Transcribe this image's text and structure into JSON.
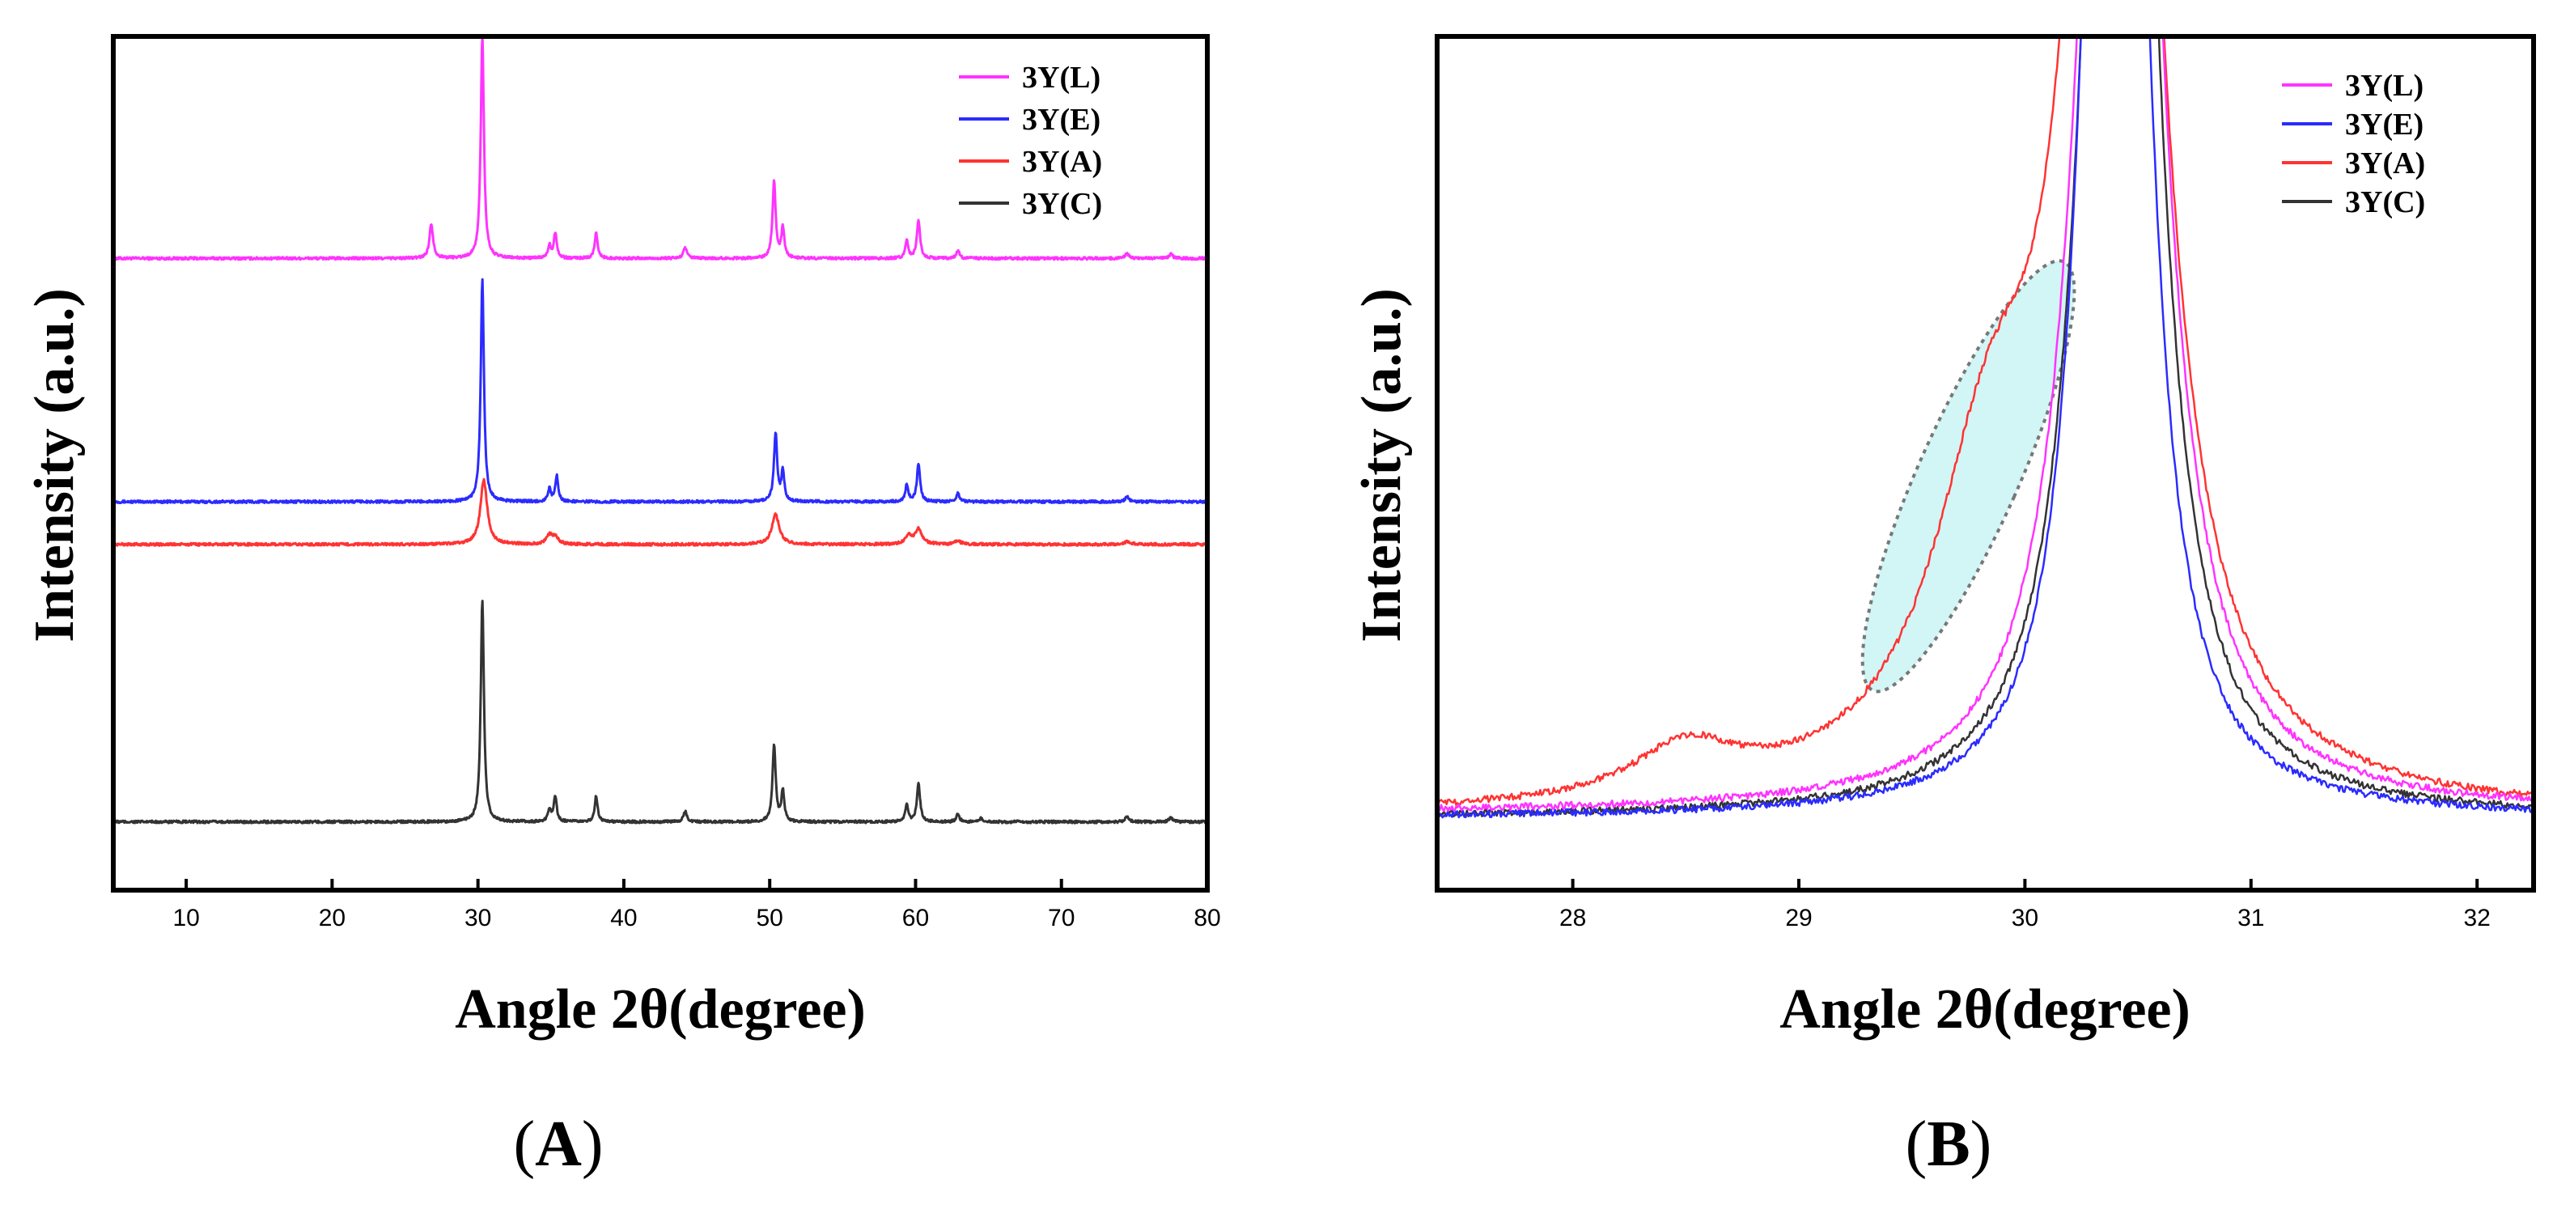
{
  "panel_labels": {
    "a": "A",
    "b": "B"
  },
  "chart_data": [
    {
      "type": "line",
      "panel": "A",
      "title": "",
      "xlabel": "Angle 2θ(degree)",
      "ylabel": "Intensity (a.u.)",
      "xlim": [
        5,
        80
      ],
      "xticks": [
        10,
        20,
        30,
        40,
        50,
        60,
        70,
        80
      ],
      "xtick_labels": [
        "10",
        "20",
        "30",
        "40",
        "50",
        "60",
        "70",
        "80"
      ],
      "ylim": [
        0,
        1
      ],
      "yticks_shown": false,
      "legend_position": "top-right",
      "series": [
        {
          "name": "3Y(L)",
          "color": "#ff33ff",
          "baseline": 0.74,
          "peaks": [
            [
              26.8,
              0.04,
              0.15
            ],
            [
              30.3,
              0.26,
              0.13
            ],
            [
              34.9,
              0.015,
              0.12
            ],
            [
              35.3,
              0.03,
              0.12
            ],
            [
              38.1,
              0.03,
              0.12
            ],
            [
              44.2,
              0.012,
              0.15
            ],
            [
              50.3,
              0.09,
              0.13
            ],
            [
              50.9,
              0.035,
              0.12
            ],
            [
              59.4,
              0.02,
              0.12
            ],
            [
              60.2,
              0.045,
              0.13
            ],
            [
              62.9,
              0.01,
              0.12
            ],
            [
              74.5,
              0.006,
              0.15
            ],
            [
              77.5,
              0.005,
              0.15
            ]
          ]
        },
        {
          "name": "3Y(E)",
          "color": "#2b2bff",
          "baseline": 0.455,
          "peaks": [
            [
              30.3,
              0.26,
              0.13
            ],
            [
              34.9,
              0.015,
              0.12
            ],
            [
              35.4,
              0.03,
              0.12
            ],
            [
              50.4,
              0.08,
              0.13
            ],
            [
              50.9,
              0.035,
              0.12
            ],
            [
              59.4,
              0.02,
              0.12
            ],
            [
              60.2,
              0.045,
              0.13
            ],
            [
              62.9,
              0.01,
              0.12
            ],
            [
              74.5,
              0.006,
              0.15
            ]
          ]
        },
        {
          "name": "3Y(A)",
          "color": "#ff3333",
          "baseline": 0.405,
          "peaks": [
            [
              30.4,
              0.075,
              0.28
            ],
            [
              34.9,
              0.01,
              0.25
            ],
            [
              35.3,
              0.008,
              0.25
            ],
            [
              50.4,
              0.035,
              0.3
            ],
            [
              59.5,
              0.01,
              0.25
            ],
            [
              60.2,
              0.018,
              0.28
            ],
            [
              62.9,
              0.004,
              0.25
            ],
            [
              74.5,
              0.003,
              0.3
            ]
          ]
        },
        {
          "name": "3Y(C)",
          "color": "#333333",
          "baseline": 0.08,
          "peaks": [
            [
              30.3,
              0.26,
              0.13
            ],
            [
              34.9,
              0.015,
              0.12
            ],
            [
              35.3,
              0.03,
              0.12
            ],
            [
              38.1,
              0.03,
              0.12
            ],
            [
              44.2,
              0.012,
              0.15
            ],
            [
              50.3,
              0.09,
              0.13
            ],
            [
              50.9,
              0.035,
              0.12
            ],
            [
              59.4,
              0.02,
              0.12
            ],
            [
              60.2,
              0.045,
              0.13
            ],
            [
              62.9,
              0.01,
              0.12
            ],
            [
              64.5,
              0.004,
              0.15
            ],
            [
              74.5,
              0.006,
              0.15
            ],
            [
              77.5,
              0.005,
              0.15
            ]
          ]
        }
      ]
    },
    {
      "type": "line",
      "panel": "B",
      "title": "",
      "xlabel": "Angle 2θ(degree)",
      "ylabel": "Intensity (a.u.)",
      "xlim": [
        27.4,
        32.25
      ],
      "xticks": [
        28,
        29,
        30,
        31,
        32
      ],
      "xtick_labels": [
        "28",
        "29",
        "30",
        "31",
        "32"
      ],
      "ylim": [
        0,
        1
      ],
      "yticks_shown": false,
      "legend_position": "top-right",
      "annotation": {
        "shape": "ellipse",
        "fill": "#d2f5f5",
        "center": [
          29.75,
          0.485
        ],
        "description": "highlighted shoulder region"
      },
      "series": [
        {
          "name": "3Y(L)",
          "color": "#ff33ff",
          "baseline": 0.09,
          "peaks": [
            [
              30.42,
              2.2,
              0.16
            ]
          ]
        },
        {
          "name": "3Y(E)",
          "color": "#2b2bff",
          "baseline": 0.085,
          "peaks": [
            [
              30.4,
              2.4,
              0.12
            ]
          ]
        },
        {
          "name": "3Y(A)",
          "color": "#ff3333",
          "baseline": 0.085,
          "peaks": [
            [
              28.5,
              0.06,
              0.28
            ],
            [
              29.85,
              0.35,
              0.32
            ],
            [
              30.4,
              2.1,
              0.18
            ]
          ]
        },
        {
          "name": "3Y(C)",
          "color": "#333333",
          "baseline": 0.085,
          "peaks": [
            [
              30.42,
              2.3,
              0.14
            ]
          ]
        }
      ]
    }
  ]
}
